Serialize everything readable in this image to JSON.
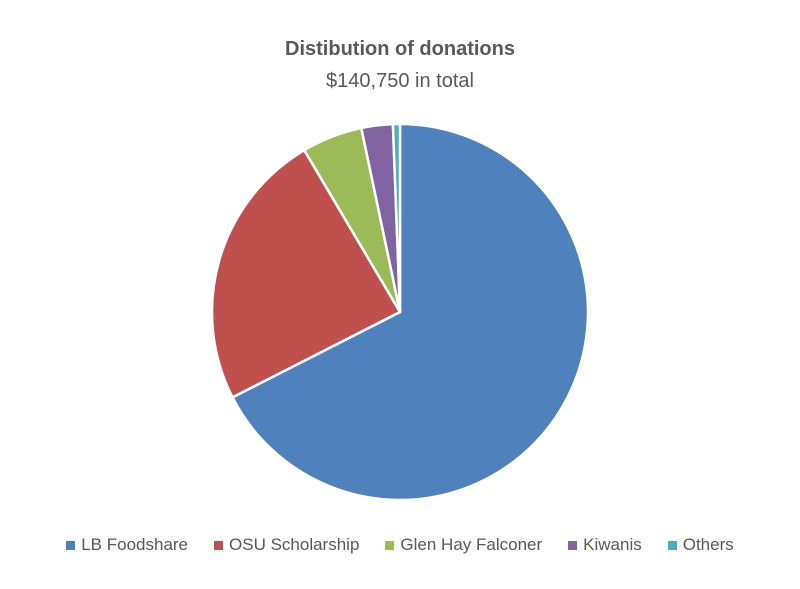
{
  "chart_data": {
    "type": "pie",
    "title": "Distibution of donations",
    "subtitle": "$140,750 in total",
    "legend_position": "bottom",
    "slices": [
      {
        "label": "LB Foodshare",
        "value": 67.5,
        "color": "#4F81BD"
      },
      {
        "label": "OSU Scholarship",
        "value": 24.0,
        "color": "#C0504D"
      },
      {
        "label": "Glen Hay Falconer",
        "value": 5.2,
        "color": "#9BBB59"
      },
      {
        "label": "Kiwanis",
        "value": 2.7,
        "color": "#8064A2"
      },
      {
        "label": "Others",
        "value": 0.6,
        "color": "#4BACC6"
      }
    ]
  }
}
